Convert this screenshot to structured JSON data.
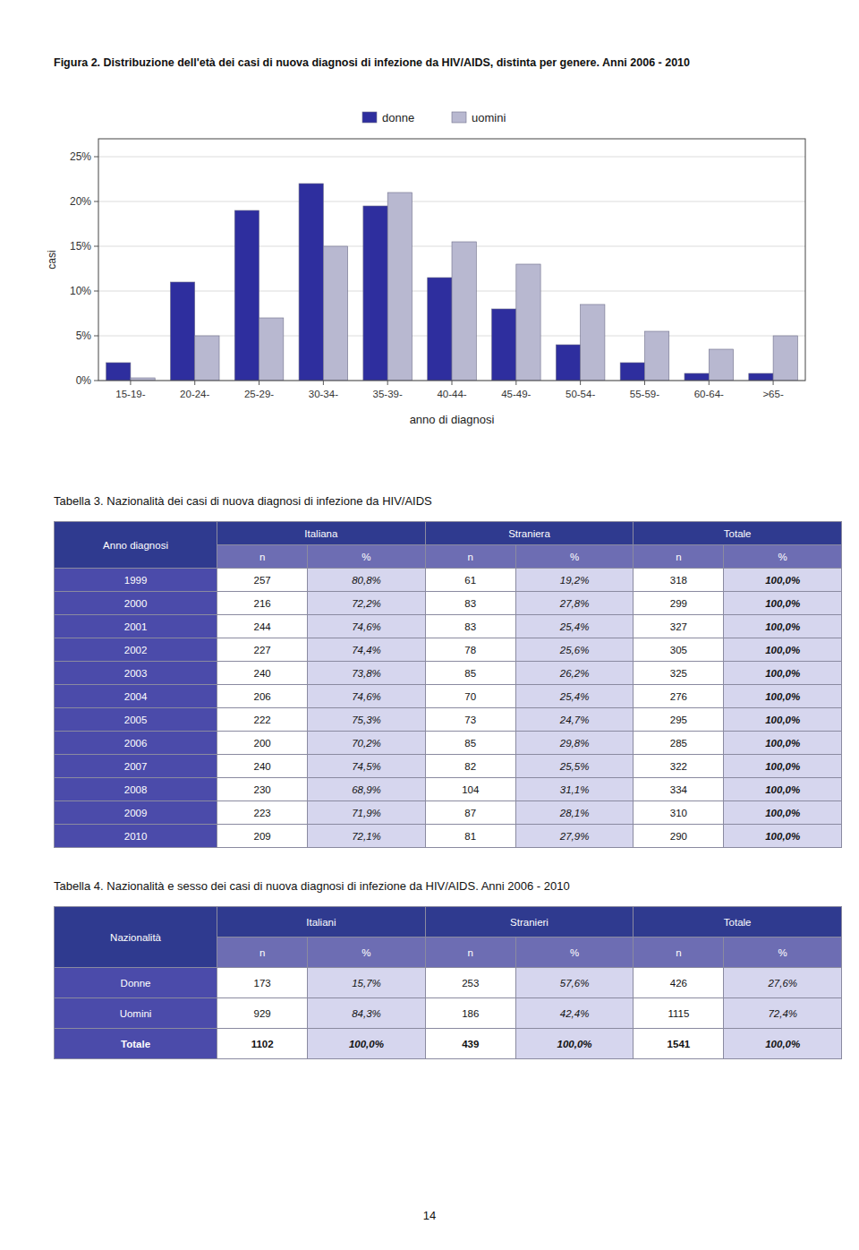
{
  "chart_data": {
    "type": "bar",
    "title": "Figura 2. Distribuzione dell'età dei casi di nuova diagnosi di infezione da HIV/AIDS, distinta per genere. Anni 2006 - 2010",
    "x_label": "anno di diagnosi",
    "y_label": "casi",
    "categories": [
      "15-19-",
      "20-24-",
      "25-29-",
      "30-34-",
      "35-39-",
      "40-44-",
      "45-49-",
      "50-54-",
      "55-59-",
      "60-64-",
      ">65-"
    ],
    "series": [
      {
        "name": "donne",
        "color": "#2E2E9E",
        "values": [
          2.0,
          11.0,
          19.0,
          22.0,
          19.5,
          11.5,
          8.0,
          4.0,
          2.0,
          0.8,
          0.8
        ]
      },
      {
        "name": "uomini",
        "color": "#B8B8D0",
        "values": [
          0.3,
          5.0,
          7.0,
          15.0,
          21.0,
          15.5,
          13.0,
          8.5,
          5.5,
          3.5,
          5.0
        ]
      }
    ],
    "ylim": [
      0,
      27
    ],
    "yticks": [
      {
        "value": 0,
        "label": "0%"
      },
      {
        "value": 5,
        "label": "5%"
      },
      {
        "value": 10,
        "label": "10%"
      },
      {
        "value": 15,
        "label": "15%"
      },
      {
        "value": 20,
        "label": "20%"
      },
      {
        "value": 25,
        "label": "25%"
      }
    ],
    "grid": true,
    "legend": "top"
  },
  "tables": [
    {
      "title": "Tabella 3. Nazionalità dei casi di nuova diagnosi di infezione da HIV/AIDS",
      "row_header": "Anno diagnosi",
      "groups": [
        "Italiana",
        "Straniera",
        "Totale"
      ],
      "subheaders": [
        "n",
        "%",
        "n",
        "%",
        "n",
        "%"
      ],
      "rows": [
        {
          "label": "1999",
          "cells": [
            257,
            "80,8%",
            61,
            "19,2%",
            318,
            "100,0%"
          ]
        },
        {
          "label": "2000",
          "cells": [
            216,
            "72,2%",
            83,
            "27,8%",
            299,
            "100,0%"
          ]
        },
        {
          "label": "2001",
          "cells": [
            244,
            "74,6%",
            83,
            "25,4%",
            327,
            "100,0%"
          ]
        },
        {
          "label": "2002",
          "cells": [
            227,
            "74,4%",
            78,
            "25,6%",
            305,
            "100,0%"
          ]
        },
        {
          "label": "2003",
          "cells": [
            240,
            "73,8%",
            85,
            "26,2%",
            325,
            "100,0%"
          ]
        },
        {
          "label": "2004",
          "cells": [
            206,
            "74,6%",
            70,
            "25,4%",
            276,
            "100,0%"
          ]
        },
        {
          "label": "2005",
          "cells": [
            222,
            "75,3%",
            73,
            "24,7%",
            295,
            "100,0%"
          ]
        },
        {
          "label": "2006",
          "cells": [
            200,
            "70,2%",
            85,
            "29,8%",
            285,
            "100,0%"
          ]
        },
        {
          "label": "2007",
          "cells": [
            240,
            "74,5%",
            82,
            "25,5%",
            322,
            "100,0%"
          ]
        },
        {
          "label": "2008",
          "cells": [
            230,
            "68,9%",
            104,
            "31,1%",
            334,
            "100,0%"
          ]
        },
        {
          "label": "2009",
          "cells": [
            223,
            "71,9%",
            87,
            "28,1%",
            310,
            "100,0%"
          ]
        },
        {
          "label": "2010",
          "cells": [
            209,
            "72,1%",
            81,
            "27,9%",
            290,
            "100,0%"
          ]
        }
      ]
    },
    {
      "title": "Tabella 4. Nazionalità e sesso dei casi di nuova diagnosi di infezione da HIV/AIDS. Anni 2006 - 2010",
      "row_header": "Nazionalità",
      "groups": [
        "Italiani",
        "Stranieri",
        "Totale"
      ],
      "subheaders": [
        "n",
        "%",
        "n",
        "%",
        "n",
        "%"
      ],
      "rows": [
        {
          "label": "Donne",
          "cells": [
            173,
            "15,7%",
            253,
            "57,6%",
            426,
            "27,6%"
          ]
        },
        {
          "label": "Uomini",
          "cells": [
            929,
            "84,3%",
            186,
            "42,4%",
            1115,
            "72,4%"
          ]
        },
        {
          "label": "Totale",
          "cells": [
            1102,
            "100,0%",
            439,
            "100,0%",
            1541,
            "100,0%"
          ]
        }
      ]
    }
  ],
  "page_number": "14"
}
